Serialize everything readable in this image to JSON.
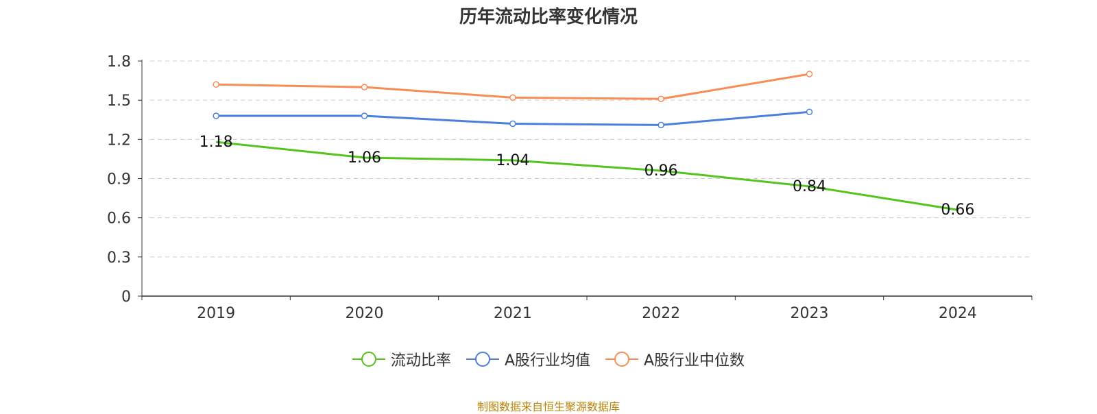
{
  "chart_data": {
    "type": "line",
    "title": "历年流动比率变化情况",
    "categories": [
      "2019",
      "2020",
      "2021",
      "2022",
      "2023",
      "2024"
    ],
    "ylim": [
      0,
      1.8
    ],
    "yticks": [
      0,
      0.3,
      0.6,
      0.9,
      1.2,
      1.5,
      1.8
    ],
    "ytick_labels": [
      "0",
      "0.3",
      "0.6",
      "0.9",
      "1.2",
      "1.5",
      "1.8"
    ],
    "grid": true,
    "legend_position": "bottom-center",
    "series": [
      {
        "name": "流动比率",
        "color": "#52C41A",
        "values": [
          1.18,
          1.06,
          1.04,
          0.96,
          0.84,
          0.66
        ],
        "labels": [
          "1.18",
          "1.06",
          "1.04",
          "0.96",
          "0.84",
          "0.66"
        ]
      },
      {
        "name": "A股行业均值",
        "color": "#4A7FDE",
        "values": [
          1.38,
          1.38,
          1.32,
          1.31,
          1.41,
          null
        ]
      },
      {
        "name": "A股行业中位数",
        "color": "#F98C55",
        "values": [
          1.62,
          1.6,
          1.52,
          1.51,
          1.7,
          null
        ]
      }
    ]
  },
  "footer": {
    "source": "制图数据来自恒生聚源数据库"
  }
}
